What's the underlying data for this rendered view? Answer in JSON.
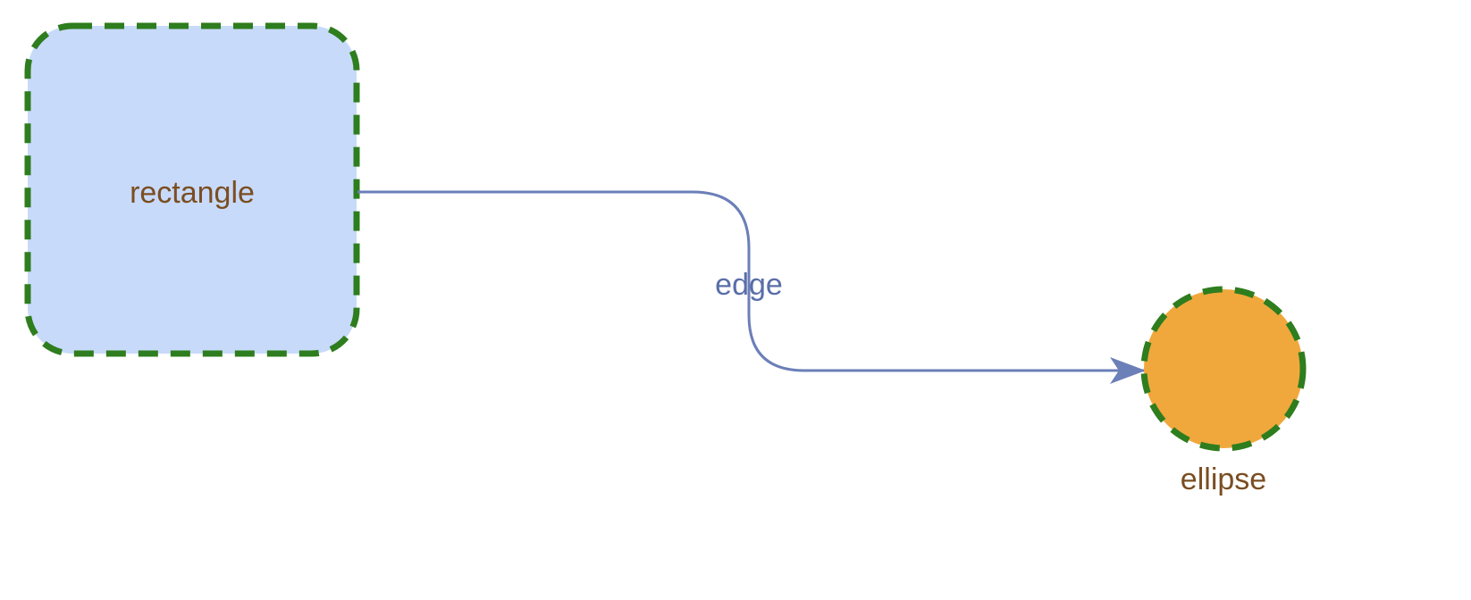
{
  "diagram": {
    "nodes": {
      "rectangle": {
        "label": "rectangle",
        "shape": "rounded-rectangle"
      },
      "ellipse": {
        "label": "ellipse",
        "shape": "ellipse"
      }
    },
    "edge": {
      "label": "edge",
      "from": "rectangle",
      "to": "ellipse",
      "style": "orthogonal-rounded"
    }
  },
  "colors": {
    "rectangle_fill": "#c8dafa",
    "ellipse_fill": "#f0a83c",
    "node_border": "#2e7d1e",
    "edge": "#6b7fb8",
    "node_label": "#7a4e22",
    "edge_label": "#5a6ea8"
  }
}
